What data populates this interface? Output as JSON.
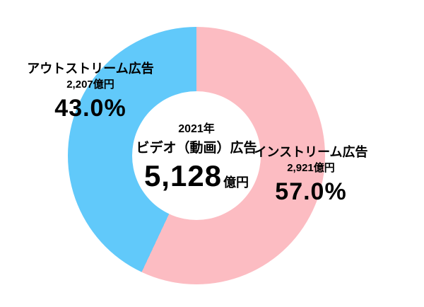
{
  "chart_data": {
    "type": "pie",
    "donut": true,
    "start_angle_deg": 0,
    "direction": "clockwise",
    "legend_position": "none",
    "segments": [
      {
        "label": "インストリーム広告",
        "amount": "2,921億円",
        "percent_label": "57.0%",
        "value": 57.0,
        "color": "#FCBCC2"
      },
      {
        "label": "アウトストリーム広告",
        "amount": "2,207億円",
        "percent_label": "43.0%",
        "value": 43.0,
        "color": "#61C9FA"
      }
    ],
    "center": {
      "year": "2021年",
      "title": "ビデオ（動画）広告",
      "value": "5,128",
      "unit": "億円"
    }
  }
}
